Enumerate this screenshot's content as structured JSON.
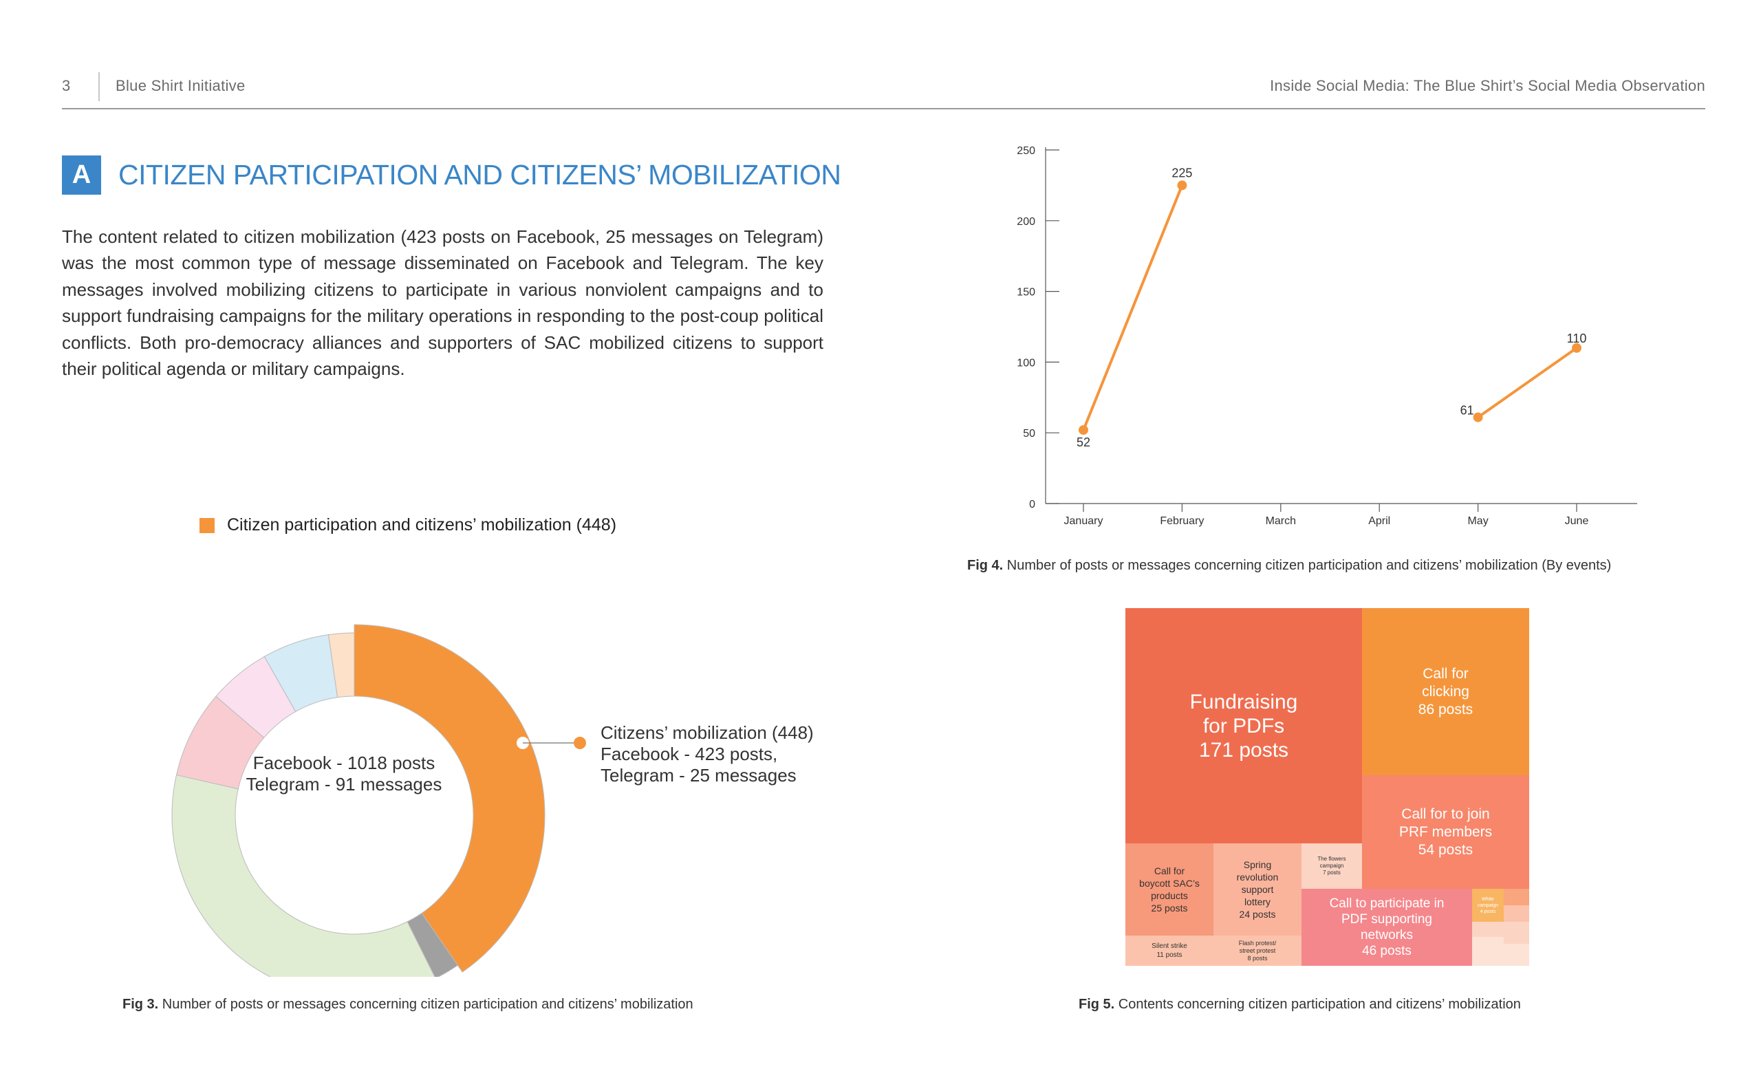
{
  "header": {
    "page_number": "3",
    "org": "Blue Shirt Initiative",
    "doc_title": "Inside Social Media: The Blue Shirt’s Social Media Observation"
  },
  "section": {
    "badge": "A",
    "title": "CITIZEN PARTICIPATION AND CITIZENS’ MOBILIZATION",
    "body": "The content related to citizen mobilization (423 posts on Facebook, 25 messages on Telegram) was the most common type of message disseminated on Facebook and Telegram. The key messages involved mobilizing citizens to participate in various nonviolent campaigns and to support fundraising campaigns for the military operations in responding to the post-coup political conflicts. Both pro-democracy alliances and supporters of SAC mobilized citizens to support their political agenda or military campaigns."
  },
  "colors": {
    "accent_blue": "#3a86c8",
    "orange": "#f5953b",
    "treemap_red": "#ef6d4f",
    "treemap_salmon": "#f7866a",
    "treemap_pink": "#f4878c",
    "treemap_light": "#fbb49c"
  },
  "figures": {
    "fig3_caption_bold": "Fig 3.",
    "fig3_caption": " Number of posts or messages concerning citizen participation and citizens’ mobilization",
    "fig4_caption_bold": "Fig 4.",
    "fig4_caption": " Number of posts or messages concerning citizen participation and citizens’ mobilization (By events)",
    "fig5_caption_bold": "Fig 5.",
    "fig5_caption": " Contents concerning citizen participation and citizens’ mobilization"
  },
  "donut": {
    "legend": "Citizen participation and citizens’ mobilization (448)",
    "center_line1": "Facebook - 1018 posts",
    "center_line2": "Telegram - 91 messages",
    "note_line1": "Citizens’ mobilization (448)",
    "note_line2": "Facebook - 423 posts,",
    "note_line3": "Telegram - 25 messages"
  },
  "chart_data": [
    {
      "type": "pie",
      "total": 1109,
      "highlighted": {
        "label": "Citizens’ mobilization",
        "value": 448,
        "facebook": 423,
        "telegram": 25
      },
      "center_text": [
        "Facebook - 1018 posts",
        "Telegram - 91 messages"
      ],
      "slices": [
        {
          "value": 448,
          "color": "#f5953b"
        },
        {
          "value": 25,
          "color": "#a0a0a0"
        },
        {
          "value": 398,
          "color": "#e1edd3"
        },
        {
          "value": 86,
          "color": "#f9ccd1"
        },
        {
          "value": 61,
          "color": "#fbe0ef"
        },
        {
          "value": 66,
          "color": "#d5ebf6"
        },
        {
          "value": 25,
          "color": "#fde1c9"
        }
      ]
    },
    {
      "type": "line",
      "categories": [
        "January",
        "February",
        "March",
        "April",
        "May",
        "June"
      ],
      "segments": [
        {
          "points": [
            [
              "January",
              52
            ],
            [
              "February",
              225
            ]
          ]
        },
        {
          "points": [
            [
              "May",
              61
            ],
            [
              "June",
              110
            ]
          ]
        }
      ],
      "ylim": [
        0,
        250
      ],
      "yticks": [
        0,
        50,
        100,
        150,
        200,
        250
      ],
      "data_labels": [
        "52",
        "225",
        "61",
        "110"
      ],
      "color": "#f5953b"
    },
    {
      "type": "treemap",
      "items": [
        {
          "label": "Fundraising for PDFs 171 posts",
          "value": 171,
          "color": "#ef6d4f"
        },
        {
          "label": "Call for clicking 86 posts",
          "value": 86,
          "color": "#f5953b"
        },
        {
          "label": "Call for to join PRF members 54 posts",
          "value": 54,
          "color": "#f7866a"
        },
        {
          "label": "Call to participate in PDF supporting networks 46 posts",
          "value": 46,
          "color": "#f4878c"
        },
        {
          "label": "Call for boycott SAC’s products 25 posts",
          "value": 25,
          "color": "#f7997b"
        },
        {
          "label": "Spring revolution support lottery 24 posts",
          "value": 24,
          "color": "#fbb49c"
        },
        {
          "label": "Silent strike 11 posts",
          "value": 11,
          "color": "#fbc3ab"
        },
        {
          "label": "Flash protest/ street protest 8 posts",
          "value": 8,
          "color": "#fbc3ab"
        },
        {
          "label": "The flowers campaign 7 posts",
          "value": 7,
          "color": "#fbd4c4"
        },
        {
          "label": "White campaign 4 posts",
          "value": 4,
          "color": "#f8b562"
        }
      ]
    }
  ],
  "line_chart": {
    "yticks": [
      "0",
      "50",
      "100",
      "150",
      "200",
      "250"
    ],
    "xlabels": [
      "January",
      "February",
      "March",
      "April",
      "May",
      "June"
    ],
    "labels": {
      "jan": "52",
      "feb": "225",
      "may": "61",
      "jun": "110"
    }
  },
  "treemap": {
    "fundraising": [
      "Fundraising",
      "for PDFs",
      "171 posts"
    ],
    "clicking": [
      "Call for",
      "clicking",
      "86 posts"
    ],
    "prf": [
      "Call for to join",
      "PRF members",
      "54 posts"
    ],
    "pdf_networks": [
      "Call to participate in",
      "PDF supporting",
      "networks",
      "46 posts"
    ],
    "boycott": [
      "Call for",
      "boycott SAC’s",
      "products",
      "25 posts"
    ],
    "lottery": [
      "Spring",
      "revolution",
      "support",
      "lottery",
      "24 posts"
    ],
    "silent": [
      "Silent strike",
      "11 posts"
    ],
    "flash": [
      "Flash protest/",
      "street protest",
      "8 posts"
    ],
    "flowers": [
      "The flowers",
      "campaign",
      "7 posts"
    ],
    "white": [
      "White",
      "campaign",
      "4 posts"
    ]
  }
}
